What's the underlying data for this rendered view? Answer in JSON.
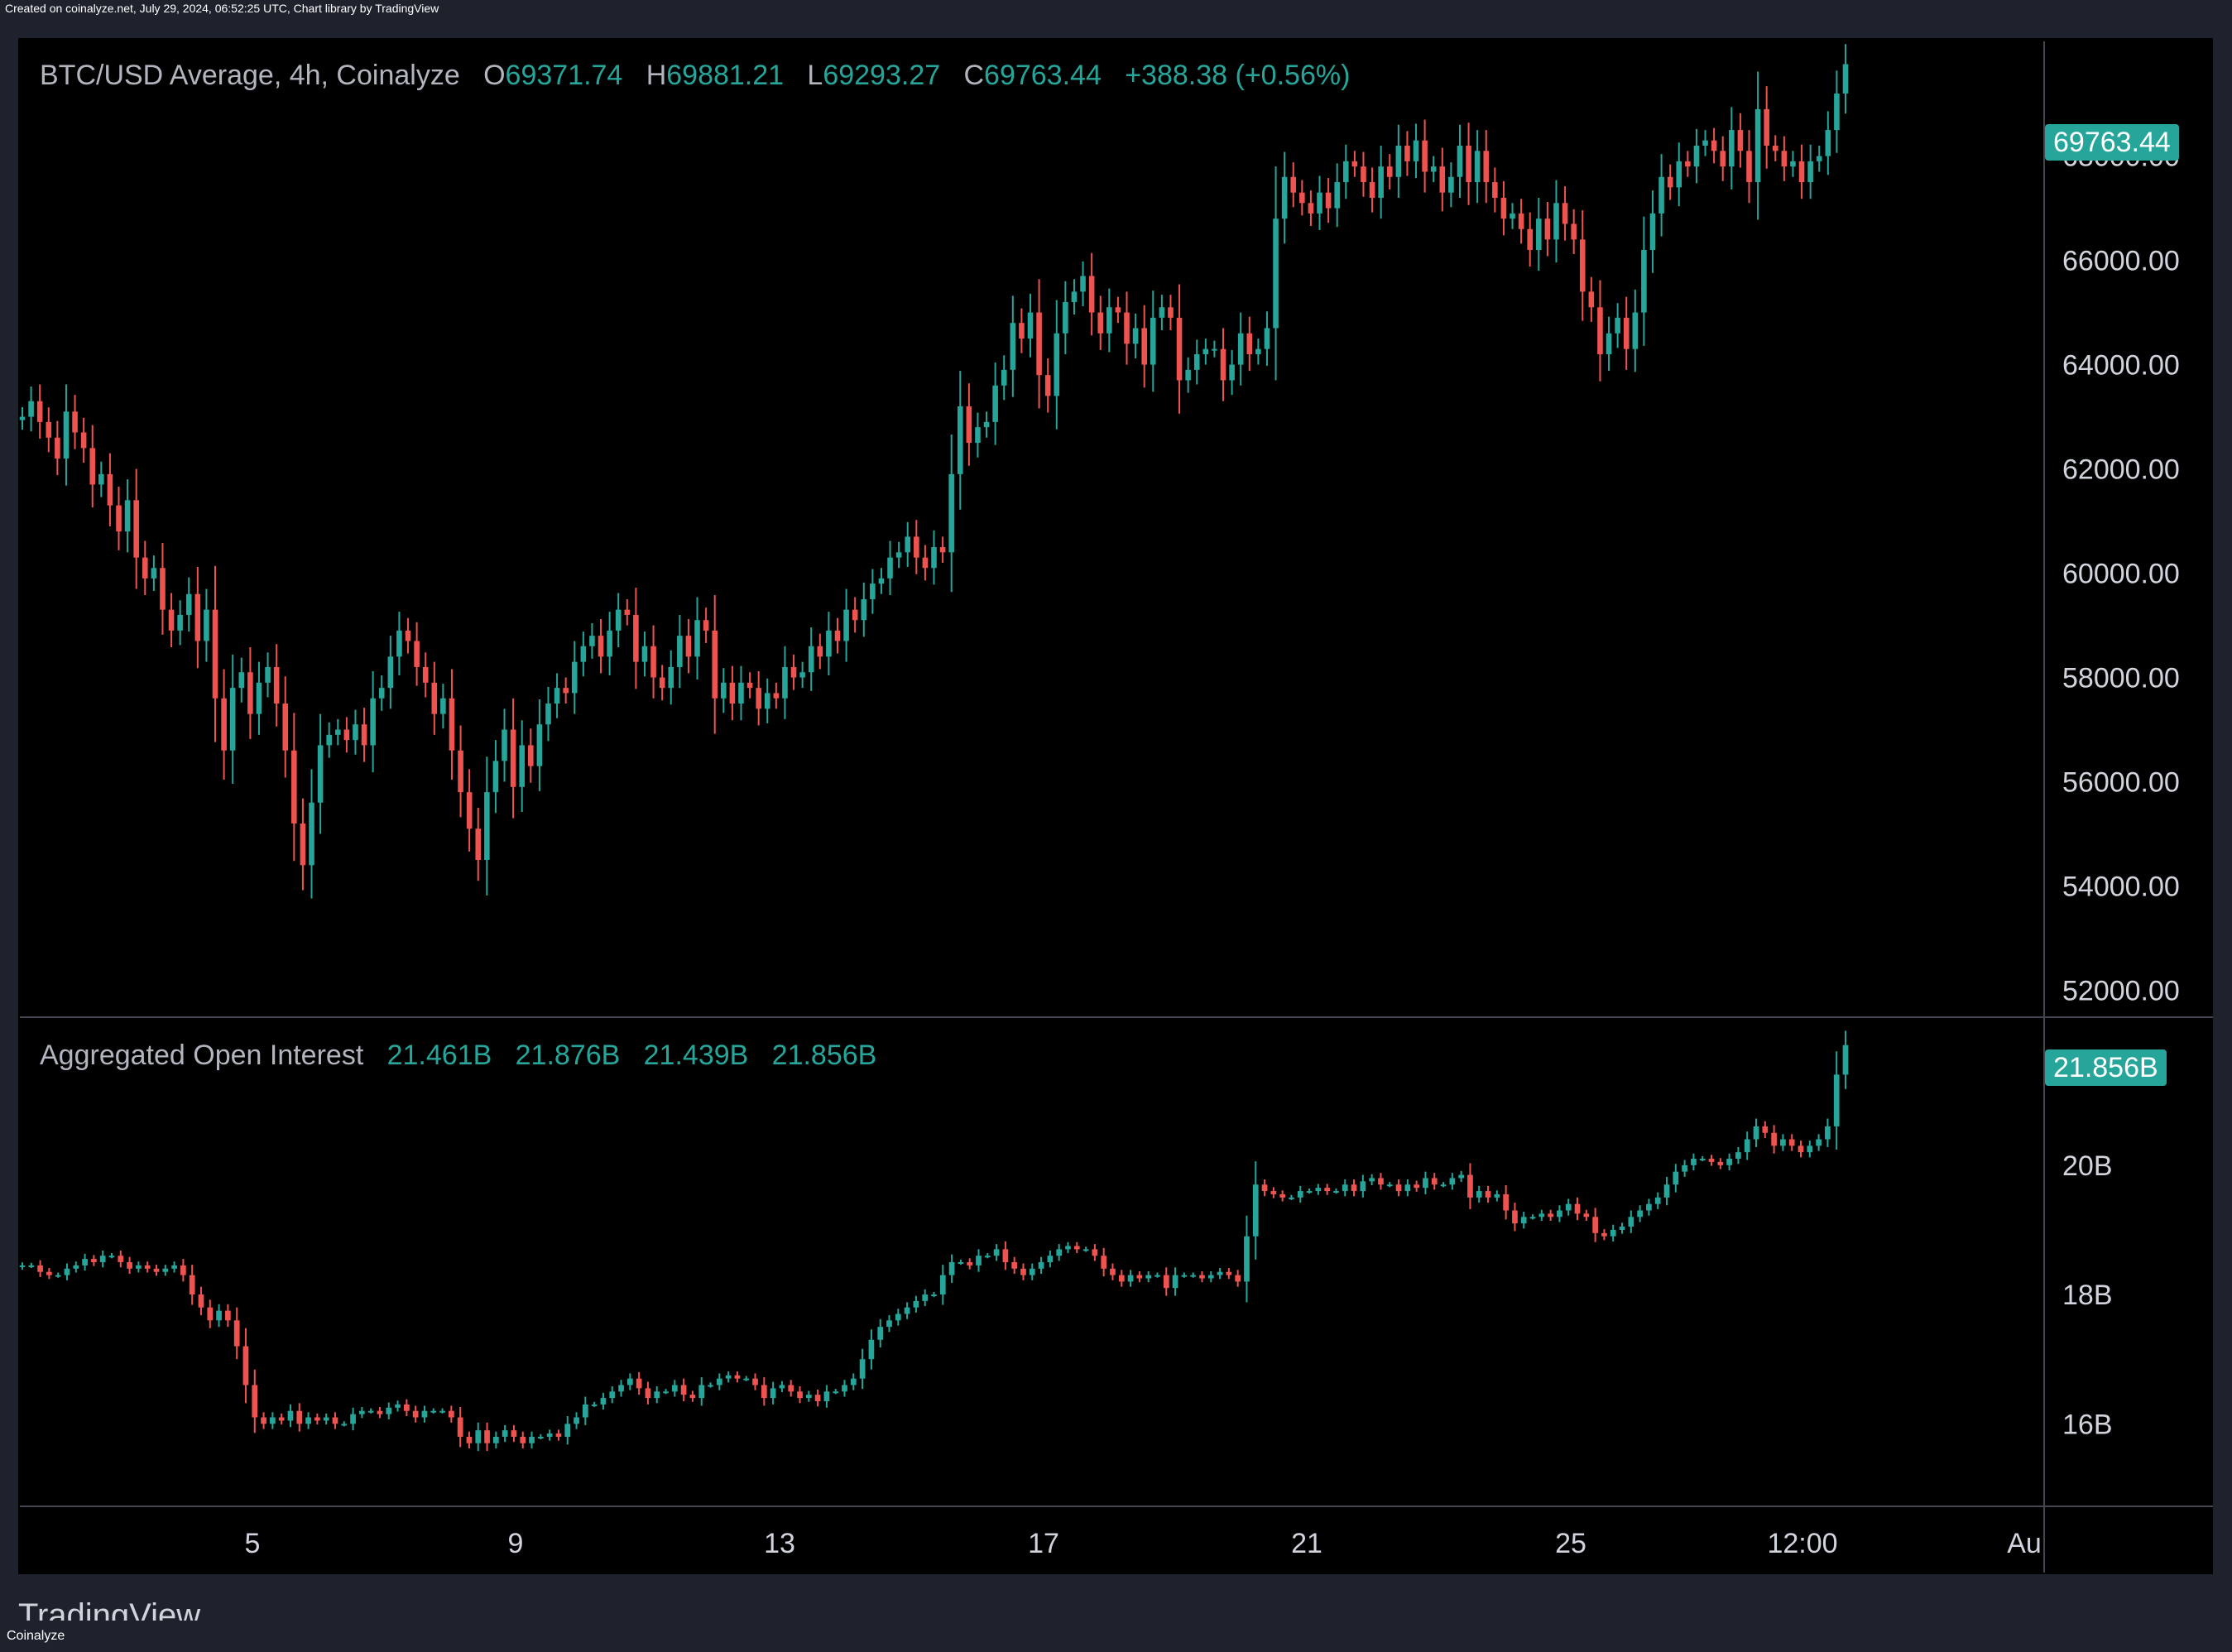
{
  "header_note": "Created on coinalyze.net, July 29, 2024, 06:52:25 UTC, Chart library by TradingView",
  "price_legend": {
    "title": "BTC/USD Average, 4h, Coinalyze",
    "o_label": "O",
    "o": "69371.74",
    "h_label": "H",
    "h": "69881.21",
    "l_label": "L",
    "l": "69293.27",
    "c_label": "C",
    "c": "69763.44",
    "change": "+388.38 (+0.56%)"
  },
  "price_badge": "69763.44",
  "oi_legend": {
    "title": "Aggregated Open Interest",
    "v1": "21.461B",
    "v2": "21.876B",
    "v3": "21.439B",
    "v4": "21.856B"
  },
  "oi_badge": "21.856B",
  "brand": "TradingView",
  "footer_credit": "Coinalyze",
  "colors": {
    "up": "#26a69a",
    "down": "#ef5350",
    "background": "#000000",
    "frame": "#1e222d"
  },
  "chart_data": [
    {
      "type": "candlestick",
      "title": "BTC/USD Average, 4h, Coinalyze",
      "ylim": [
        51500,
        70200
      ],
      "y_ticks": [
        "68000.00",
        "66000.00",
        "64000.00",
        "62000.00",
        "60000.00",
        "58000.00",
        "56000.00",
        "54000.00",
        "52000.00"
      ],
      "x_ticks": [
        "5",
        "9",
        "13",
        "17",
        "21",
        "25",
        "12:00",
        "Au"
      ],
      "close_series": [
        63000,
        63300,
        62900,
        62600,
        62200,
        63100,
        62700,
        62400,
        61700,
        61900,
        61300,
        60800,
        61400,
        60300,
        59900,
        60100,
        59300,
        58900,
        59200,
        59600,
        58700,
        59300,
        57600,
        56600,
        57800,
        58100,
        57300,
        57900,
        58200,
        57500,
        56600,
        55200,
        54400,
        55600,
        56700,
        56900,
        57000,
        56800,
        57100,
        56700,
        57600,
        57800,
        58400,
        58900,
        58700,
        58200,
        57900,
        57300,
        57600,
        56600,
        55800,
        55100,
        54500,
        55800,
        56400,
        57000,
        55900,
        56700,
        56300,
        57100,
        57500,
        57800,
        57700,
        58300,
        58600,
        58800,
        58400,
        58900,
        59300,
        59200,
        58300,
        58600,
        58000,
        57800,
        58200,
        58800,
        58400,
        59100,
        58900,
        57600,
        57900,
        57500,
        57900,
        57800,
        57400,
        57700,
        57600,
        58200,
        58000,
        58100,
        58600,
        58400,
        58900,
        58700,
        59300,
        59100,
        59500,
        59800,
        59900,
        60300,
        60400,
        60700,
        60300,
        60100,
        60500,
        60400,
        61900,
        63200,
        62500,
        62800,
        62900,
        63600,
        63900,
        64800,
        64500,
        65000,
        63800,
        63400,
        64600,
        65200,
        65400,
        65700,
        65000,
        64600,
        65100,
        65000,
        64400,
        64700,
        64000,
        64900,
        65100,
        64900,
        63700,
        63900,
        64200,
        64300,
        64300,
        63700,
        64000,
        64600,
        64200,
        64300,
        64700,
        66800,
        67600,
        67300,
        67100,
        66900,
        67300,
        67000,
        67500,
        67900,
        67800,
        67500,
        67200,
        67800,
        67600,
        68200,
        67900,
        68300,
        67700,
        67800,
        67300,
        67600,
        68200,
        67500,
        68100,
        67500,
        67200,
        66800,
        66900,
        66600,
        66200,
        66800,
        66400,
        67100,
        66700,
        66400,
        65400,
        65100,
        64200,
        64600,
        64900,
        64300,
        65000,
        66200,
        66900,
        67600,
        67400,
        67900,
        67800,
        68200,
        68300,
        68100,
        67800,
        68500,
        68100,
        67500,
        68900,
        68200,
        68100,
        67800,
        67900,
        67500,
        67900,
        68000,
        68500,
        69200,
        69763
      ]
    },
    {
      "type": "candlestick",
      "title": "Aggregated Open Interest",
      "ylim": [
        14750000000,
        22250000000
      ],
      "y_ticks": [
        "20B",
        "18B",
        "16B"
      ],
      "close_series": [
        18.45,
        18.45,
        18.35,
        18.3,
        18.3,
        18.4,
        18.45,
        18.55,
        18.5,
        18.6,
        18.6,
        18.5,
        18.4,
        18.45,
        18.4,
        18.35,
        18.4,
        18.45,
        18.3,
        18.0,
        17.8,
        17.6,
        17.75,
        17.6,
        17.2,
        16.6,
        16.1,
        16.0,
        16.1,
        16.05,
        16.2,
        16.0,
        16.1,
        16.05,
        16.1,
        16.0,
        16.0,
        16.15,
        16.2,
        16.2,
        16.15,
        16.25,
        16.3,
        16.2,
        16.1,
        16.2,
        16.2,
        16.2,
        16.1,
        15.8,
        15.7,
        15.9,
        15.7,
        15.8,
        15.9,
        15.8,
        15.7,
        15.8,
        15.8,
        15.85,
        15.8,
        16.0,
        16.1,
        16.3,
        16.3,
        16.4,
        16.5,
        16.6,
        16.7,
        16.55,
        16.4,
        16.5,
        16.5,
        16.6,
        16.45,
        16.4,
        16.6,
        16.6,
        16.7,
        16.75,
        16.7,
        16.7,
        16.6,
        16.4,
        16.55,
        16.6,
        16.5,
        16.4,
        16.45,
        16.35,
        16.5,
        16.5,
        16.6,
        16.7,
        17.0,
        17.3,
        17.5,
        17.6,
        17.7,
        17.8,
        17.9,
        18.0,
        18.0,
        18.3,
        18.5,
        18.5,
        18.45,
        18.6,
        18.6,
        18.7,
        18.5,
        18.4,
        18.3,
        18.4,
        18.5,
        18.6,
        18.7,
        18.75,
        18.7,
        18.7,
        18.6,
        18.4,
        18.3,
        18.2,
        18.3,
        18.25,
        18.3,
        18.3,
        18.1,
        18.3,
        18.3,
        18.3,
        18.25,
        18.3,
        18.35,
        18.3,
        18.2,
        18.9,
        19.7,
        19.6,
        19.55,
        19.5,
        19.5,
        19.6,
        19.6,
        19.65,
        19.6,
        19.6,
        19.7,
        19.6,
        19.75,
        19.8,
        19.7,
        19.7,
        19.6,
        19.7,
        19.65,
        19.8,
        19.7,
        19.7,
        19.8,
        19.85,
        19.5,
        19.6,
        19.5,
        19.55,
        19.3,
        19.1,
        19.2,
        19.2,
        19.25,
        19.2,
        19.3,
        19.4,
        19.25,
        19.2,
        18.95,
        18.9,
        19.0,
        19.05,
        19.2,
        19.3,
        19.4,
        19.5,
        19.7,
        19.9,
        20.0,
        20.1,
        20.1,
        20.05,
        20.0,
        20.1,
        20.2,
        20.4,
        20.6,
        20.5,
        20.3,
        20.4,
        20.3,
        20.2,
        20.3,
        20.4,
        20.6,
        21.4,
        21.856
      ]
    }
  ]
}
